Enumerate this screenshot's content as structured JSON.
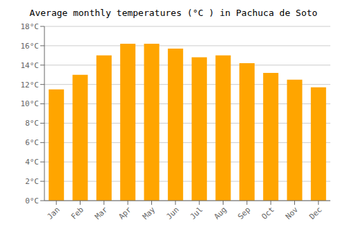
{
  "chart_data": {
    "type": "bar",
    "title": "Average monthly temperatures (°C ) in Pachuca de Soto",
    "categories": [
      "Jan",
      "Feb",
      "Mar",
      "Apr",
      "May",
      "Jun",
      "Jul",
      "Aug",
      "Sep",
      "Oct",
      "Nov",
      "Dec"
    ],
    "values": [
      11.5,
      13.0,
      15.0,
      16.2,
      16.2,
      15.7,
      14.8,
      15.0,
      14.2,
      13.2,
      12.5,
      11.7
    ],
    "color": "#FFA500",
    "ylim": [
      0,
      18
    ],
    "yticks": [
      {
        "value": 0,
        "label": "0°C"
      },
      {
        "value": 2,
        "label": "2°C"
      },
      {
        "value": 4,
        "label": "4°C"
      },
      {
        "value": 6,
        "label": "6°C"
      },
      {
        "value": 8,
        "label": "8°C"
      },
      {
        "value": 10,
        "label": "10°C"
      },
      {
        "value": 12,
        "label": "12°C"
      },
      {
        "value": 14,
        "label": "14°C"
      },
      {
        "value": 16,
        "label": "16°C"
      },
      {
        "value": 18,
        "label": "18°C"
      }
    ],
    "grid": true
  }
}
